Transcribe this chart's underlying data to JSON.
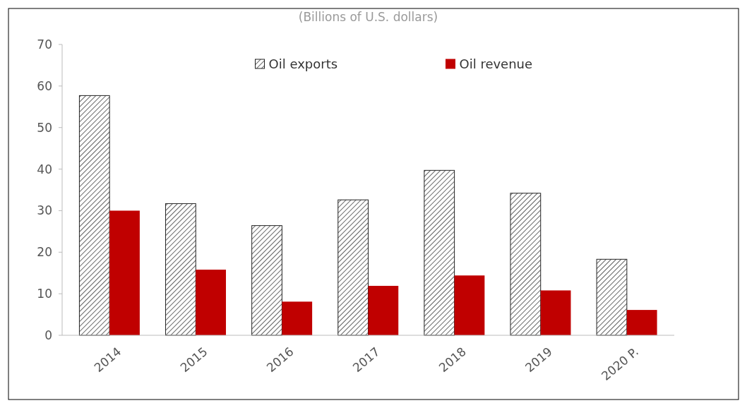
{
  "chart_data": {
    "type": "bar",
    "title": "(Billions of U.S. dollars)",
    "categories": [
      "2014",
      "2015",
      "2016",
      "2017",
      "2018",
      "2019",
      "2020 P."
    ],
    "series": [
      {
        "name": "Oil exports",
        "color": "#222222",
        "values": [
          57.7,
          31.7,
          26.4,
          32.6,
          39.7,
          34.2,
          18.3
        ]
      },
      {
        "name": "Oil revenue",
        "color": "#c00000",
        "values": [
          30,
          15.8,
          8.1,
          11.9,
          14.4,
          10.8,
          6.1
        ]
      }
    ],
    "ylim": [
      0,
      70
    ],
    "yticks": [
      0,
      10,
      20,
      30,
      40,
      50,
      60,
      70
    ],
    "grid": false,
    "legend": "top"
  }
}
